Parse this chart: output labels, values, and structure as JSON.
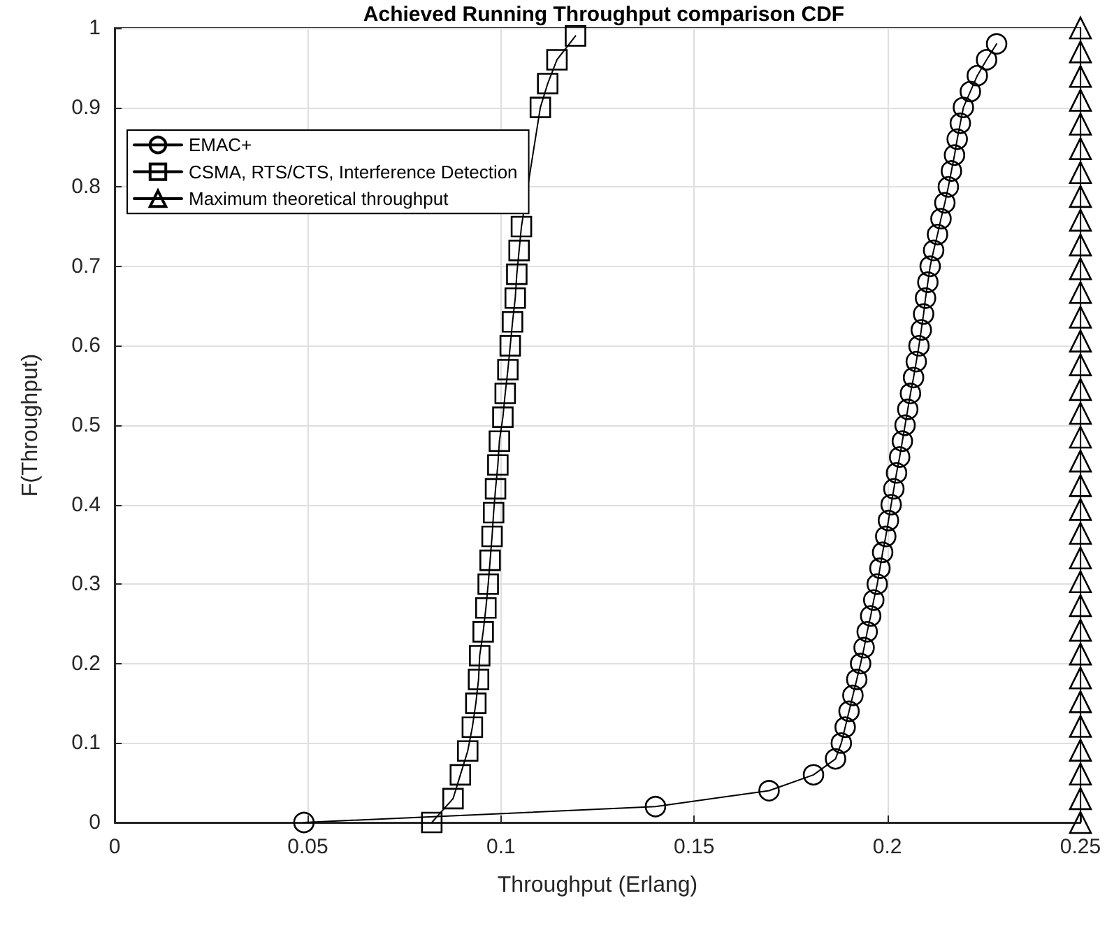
{
  "chart_data": {
    "type": "line",
    "title": "Achieved Running Throughput comparison CDF",
    "xlabel": "Throughput (Erlang)",
    "ylabel": "F(Throughput)",
    "xlim": [
      0,
      0.25
    ],
    "xticks": [
      0,
      0.05,
      0.1,
      0.15,
      0.2,
      0.25
    ],
    "ylim": [
      0,
      1
    ],
    "yticks": [
      0,
      0.1,
      0.2,
      0.3,
      0.4,
      0.5,
      0.6,
      0.7,
      0.8,
      0.9,
      1
    ],
    "grid": true,
    "legend": "top left",
    "line_style": "solid",
    "series": [
      {
        "name": "EMAC+",
        "color": "#000000",
        "marker": "circle",
        "x": [
          0.049,
          0.14,
          0.1694,
          0.1809,
          0.1866,
          0.1881,
          0.1891,
          0.1901,
          0.1911,
          0.1921,
          0.1931,
          0.194,
          0.1948,
          0.1957,
          0.1965,
          0.1974,
          0.1981,
          0.1988,
          0.1996,
          0.2003,
          0.201,
          0.2017,
          0.2024,
          0.2032,
          0.2039,
          0.2046,
          0.2053,
          0.206,
          0.2068,
          0.2075,
          0.2082,
          0.2088,
          0.2094,
          0.2099,
          0.2105,
          0.2111,
          0.212,
          0.213,
          0.2139,
          0.2149,
          0.2158,
          0.2166,
          0.2174,
          0.2181,
          0.2189,
          0.2197,
          0.2215,
          0.2233,
          0.2257,
          0.2283
        ],
        "values": [
          0,
          0.02,
          0.04,
          0.06,
          0.08,
          0.1,
          0.12,
          0.14,
          0.16,
          0.18,
          0.2,
          0.22,
          0.24,
          0.26,
          0.28,
          0.3,
          0.32,
          0.34,
          0.36,
          0.38,
          0.4,
          0.42,
          0.44,
          0.46,
          0.48,
          0.5,
          0.52,
          0.54,
          0.56,
          0.58,
          0.6,
          0.62,
          0.64,
          0.66,
          0.68,
          0.7,
          0.72,
          0.74,
          0.76,
          0.78,
          0.8,
          0.82,
          0.84,
          0.86,
          0.88,
          0.9,
          0.92,
          0.94,
          0.96,
          0.98
        ]
      },
      {
        "name": "CSMA, RTS/CTS, Interference Detection",
        "color": "#000000",
        "marker": "square",
        "x": [
          0.0821,
          0.0876,
          0.0895,
          0.0914,
          0.0926,
          0.0935,
          0.0942,
          0.0945,
          0.0954,
          0.0961,
          0.0967,
          0.0972,
          0.0977,
          0.0981,
          0.0986,
          0.0992,
          0.0996,
          0.1005,
          0.1011,
          0.1018,
          0.1024,
          0.103,
          0.1037,
          0.1041,
          0.1047,
          0.1053,
          0.1062,
          0.1072,
          0.1082,
          0.1092,
          0.1102,
          0.1121,
          0.1145,
          0.1193
        ],
        "values": [
          0,
          0.03,
          0.06,
          0.09,
          0.12,
          0.15,
          0.18,
          0.21,
          0.24,
          0.27,
          0.3,
          0.33,
          0.36,
          0.39,
          0.42,
          0.45,
          0.48,
          0.51,
          0.54,
          0.57,
          0.6,
          0.63,
          0.66,
          0.69,
          0.72,
          0.75,
          null,
          null,
          null,
          null,
          0.9,
          0.93,
          0.96,
          0.99
        ]
      },
      {
        "name": "Maximum theoretical throughput",
        "color": "#000000",
        "marker": "triangle",
        "x": [
          0.25,
          0.25,
          0.25,
          0.25,
          0.25,
          0.25,
          0.25,
          0.25,
          0.25,
          0.25,
          0.25,
          0.25,
          0.25,
          0.25,
          0.25,
          0.25,
          0.25,
          0.25,
          0.25,
          0.25,
          0.25,
          0.25,
          0.25,
          0.25,
          0.25,
          0.25,
          0.25,
          0.25,
          0.25,
          0.25,
          0.25,
          0.25,
          0.25,
          0.25
        ],
        "values": [
          0,
          0.03,
          0.061,
          0.091,
          0.121,
          0.152,
          0.182,
          0.212,
          0.242,
          0.273,
          0.303,
          0.333,
          0.364,
          0.394,
          0.424,
          0.455,
          0.485,
          0.515,
          0.545,
          0.576,
          0.606,
          0.636,
          0.667,
          0.697,
          0.727,
          0.758,
          0.788,
          0.818,
          0.848,
          0.879,
          0.909,
          0.939,
          0.97,
          1
        ]
      }
    ]
  }
}
